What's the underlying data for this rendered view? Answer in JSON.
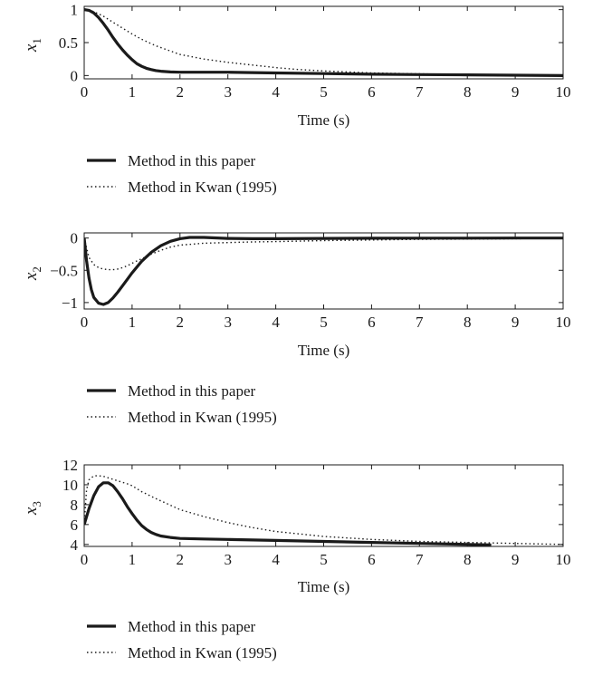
{
  "chart_data": [
    {
      "type": "line",
      "xlabel": "Time (s)",
      "ylabel": "x",
      "ylabel_sub": "1",
      "xlim": [
        0,
        10
      ],
      "ylim": [
        -0.05,
        1.05
      ],
      "xticks": [
        0,
        1,
        2,
        3,
        4,
        5,
        6,
        7,
        8,
        9,
        10
      ],
      "yticks": [
        0,
        0.5,
        1
      ],
      "ytick_labels": [
        "0",
        "0.5",
        "1"
      ],
      "grid": false,
      "legend_position": "below-left",
      "series": [
        {
          "name": "Method in this paper",
          "style": "solid",
          "x": [
            0,
            0.1,
            0.2,
            0.3,
            0.4,
            0.5,
            0.6,
            0.7,
            0.8,
            0.9,
            1.0,
            1.1,
            1.2,
            1.3,
            1.4,
            1.5,
            1.6,
            1.8,
            2.0,
            2.3,
            2.6,
            3.0,
            3.5,
            4.0,
            5.0,
            6.0,
            7.0,
            8.0,
            9.0,
            10.0
          ],
          "y": [
            1.0,
            0.99,
            0.95,
            0.88,
            0.79,
            0.69,
            0.58,
            0.48,
            0.39,
            0.31,
            0.24,
            0.18,
            0.14,
            0.11,
            0.09,
            0.075,
            0.065,
            0.055,
            0.05,
            0.05,
            0.05,
            0.05,
            0.045,
            0.04,
            0.03,
            0.02,
            0.015,
            0.01,
            0.005,
            0.0
          ]
        },
        {
          "name": "Method in Kwan (1995)",
          "style": "dotted",
          "x": [
            0,
            0.2,
            0.4,
            0.6,
            0.8,
            1.0,
            1.2,
            1.5,
            2.0,
            2.5,
            3.0,
            3.5,
            4.0,
            4.5,
            5.0,
            6.0,
            7.0,
            8.0,
            9.0,
            10.0
          ],
          "y": [
            1.0,
            0.97,
            0.9,
            0.81,
            0.72,
            0.63,
            0.55,
            0.45,
            0.32,
            0.25,
            0.2,
            0.16,
            0.12,
            0.09,
            0.07,
            0.04,
            0.025,
            0.015,
            0.01,
            0.005
          ]
        }
      ]
    },
    {
      "type": "line",
      "xlabel": "Time (s)",
      "ylabel": "x",
      "ylabel_sub": "2",
      "xlim": [
        0,
        10
      ],
      "ylim": [
        -1.1,
        0.08
      ],
      "xticks": [
        0,
        1,
        2,
        3,
        4,
        5,
        6,
        7,
        8,
        9,
        10
      ],
      "yticks": [
        0,
        -0.5,
        -1
      ],
      "ytick_labels": [
        "0",
        "−0.5",
        "−1"
      ],
      "grid": false,
      "legend_position": "below-left",
      "series": [
        {
          "name": "Method in this paper",
          "style": "solid",
          "x": [
            0,
            0.05,
            0.1,
            0.15,
            0.2,
            0.3,
            0.4,
            0.5,
            0.6,
            0.7,
            0.8,
            0.9,
            1.0,
            1.2,
            1.4,
            1.6,
            1.8,
            2.0,
            2.2,
            2.5,
            3.0,
            3.5,
            4.0,
            5.0,
            6.0,
            7.0,
            8.0,
            9.0,
            10.0
          ],
          "y": [
            0,
            -0.35,
            -0.62,
            -0.8,
            -0.92,
            -1.01,
            -1.03,
            -1.0,
            -0.93,
            -0.84,
            -0.74,
            -0.64,
            -0.54,
            -0.36,
            -0.22,
            -0.12,
            -0.05,
            -0.01,
            0.01,
            0.01,
            -0.005,
            -0.01,
            -0.01,
            -0.005,
            -0.003,
            -0.002,
            -0.001,
            0.0,
            0.0
          ]
        },
        {
          "name": "Method in Kwan (1995)",
          "style": "dotted",
          "x": [
            0,
            0.1,
            0.2,
            0.3,
            0.4,
            0.5,
            0.6,
            0.7,
            0.8,
            0.9,
            1.0,
            1.2,
            1.4,
            1.6,
            1.8,
            2.0,
            2.5,
            3.0,
            3.5,
            4.0,
            5.0,
            6.0,
            7.0,
            8.0,
            9.0,
            10.0
          ],
          "y": [
            0,
            -0.3,
            -0.41,
            -0.46,
            -0.48,
            -0.49,
            -0.49,
            -0.48,
            -0.46,
            -0.43,
            -0.39,
            -0.32,
            -0.25,
            -0.19,
            -0.14,
            -0.11,
            -0.08,
            -0.07,
            -0.06,
            -0.055,
            -0.04,
            -0.03,
            -0.02,
            -0.015,
            -0.01,
            -0.005
          ]
        }
      ]
    },
    {
      "type": "line",
      "xlabel": "Time (s)",
      "ylabel": "x",
      "ylabel_sub": "3",
      "xlim": [
        0,
        10
      ],
      "ylim": [
        3.8,
        12
      ],
      "xticks": [
        0,
        1,
        2,
        3,
        4,
        5,
        6,
        7,
        8,
        9,
        10
      ],
      "yticks": [
        4,
        6,
        8,
        10,
        12
      ],
      "ytick_labels": [
        "4",
        "6",
        "8",
        "10",
        "12"
      ],
      "grid": false,
      "legend_position": "below-left",
      "series": [
        {
          "name": "Method in this paper",
          "style": "solid",
          "x": [
            0,
            0.1,
            0.2,
            0.3,
            0.4,
            0.5,
            0.6,
            0.7,
            0.8,
            0.9,
            1.0,
            1.1,
            1.2,
            1.3,
            1.4,
            1.5,
            1.6,
            1.8,
            2.0,
            2.5,
            3.0,
            4.0,
            5.0,
            6.0,
            7.0,
            8.0,
            8.5
          ],
          "y": [
            6.0,
            7.6,
            8.9,
            9.8,
            10.2,
            10.2,
            9.9,
            9.3,
            8.6,
            7.8,
            7.1,
            6.45,
            5.9,
            5.5,
            5.2,
            5.0,
            4.85,
            4.7,
            4.6,
            4.55,
            4.5,
            4.4,
            4.3,
            4.2,
            4.1,
            4.0,
            3.95
          ]
        },
        {
          "name": "Method in Kwan (1995)",
          "style": "dotted",
          "x": [
            0,
            0.05,
            0.1,
            0.2,
            0.3,
            0.4,
            0.5,
            0.7,
            0.9,
            1.0,
            1.2,
            1.5,
            2.0,
            2.5,
            3.0,
            3.5,
            4.0,
            5.0,
            6.0,
            7.0,
            8.0,
            9.0,
            10.0
          ],
          "y": [
            6.0,
            9.5,
            10.5,
            10.9,
            10.9,
            10.85,
            10.7,
            10.4,
            10.1,
            9.9,
            9.3,
            8.6,
            7.5,
            6.8,
            6.2,
            5.7,
            5.3,
            4.8,
            4.5,
            4.3,
            4.2,
            4.1,
            4.0
          ]
        }
      ]
    }
  ]
}
